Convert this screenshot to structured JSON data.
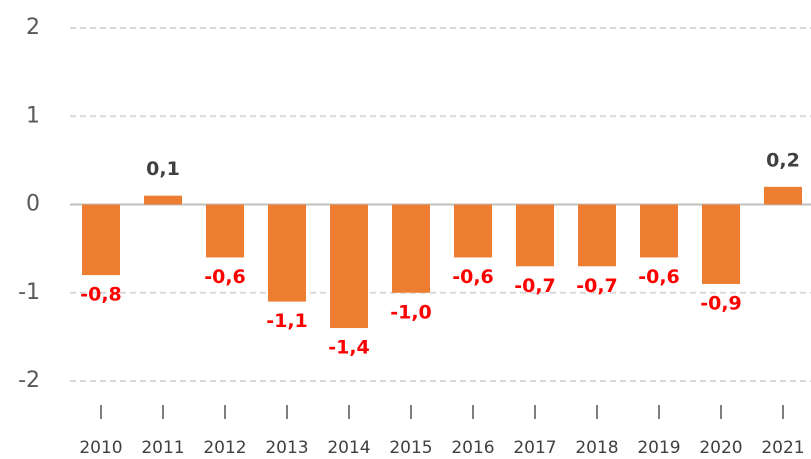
{
  "chart_data": {
    "type": "bar",
    "categories": [
      "2010",
      "2011",
      "2012",
      "2013",
      "2014",
      "2015",
      "2016",
      "2017",
      "2018",
      "2019",
      "2020",
      "2021"
    ],
    "values": [
      -0.8,
      0.1,
      -0.6,
      -1.1,
      -1.4,
      -1.0,
      -0.6,
      -0.7,
      -0.7,
      -0.6,
      -0.9,
      0.2
    ],
    "value_labels": [
      "-0,8",
      "0,1",
      "-0,6",
      "-1,1",
      "-1,4",
      "-1,0",
      "-0,6",
      "-0,7",
      "-0,7",
      "-0,6",
      "-0,9",
      "0,2"
    ],
    "color": "#ed7d31",
    "ylim": [
      -2,
      2
    ],
    "yticks": [
      -2,
      -1,
      0,
      1,
      2
    ],
    "grid": true
  }
}
